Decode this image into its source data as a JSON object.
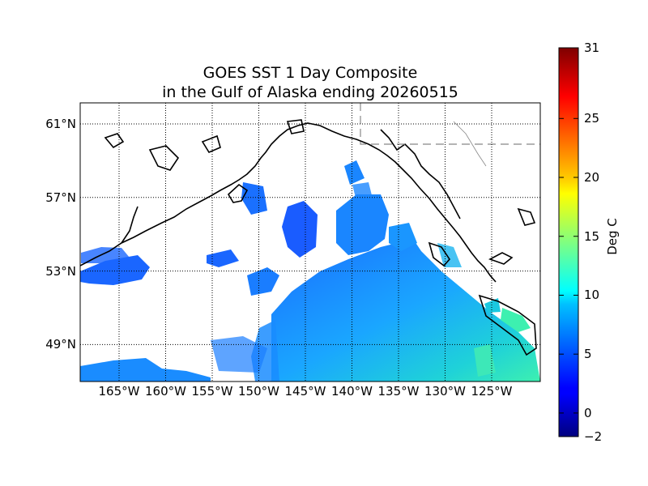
{
  "title": {
    "line1": "GOES SST 1 Day Composite",
    "line2": "in the Gulf of Alaska ending 20260515"
  },
  "colorbar": {
    "label": "Deg C",
    "min": -2,
    "max": 31,
    "ticks": [
      "31",
      "25",
      "20",
      "15",
      "10",
      "5",
      "0",
      "−2"
    ],
    "tick_values": [
      31,
      25,
      20,
      15,
      10,
      5,
      0,
      -2
    ],
    "colormap": "jet"
  },
  "map": {
    "lat_labels": [
      "61°N",
      "57°N",
      "53°N",
      "49°N"
    ],
    "lat_values": [
      61,
      57,
      53,
      49
    ],
    "lon_labels": [
      "165°W",
      "160°W",
      "155°W",
      "150°W",
      "145°W",
      "140°W",
      "135°W",
      "130°W",
      "125°W"
    ],
    "lon_values": [
      -165,
      -160,
      -155,
      -150,
      -145,
      -140,
      -135,
      -130,
      -125
    ],
    "grid": "dotted",
    "sst_range_shown_degC": [
      4,
      15
    ]
  }
}
